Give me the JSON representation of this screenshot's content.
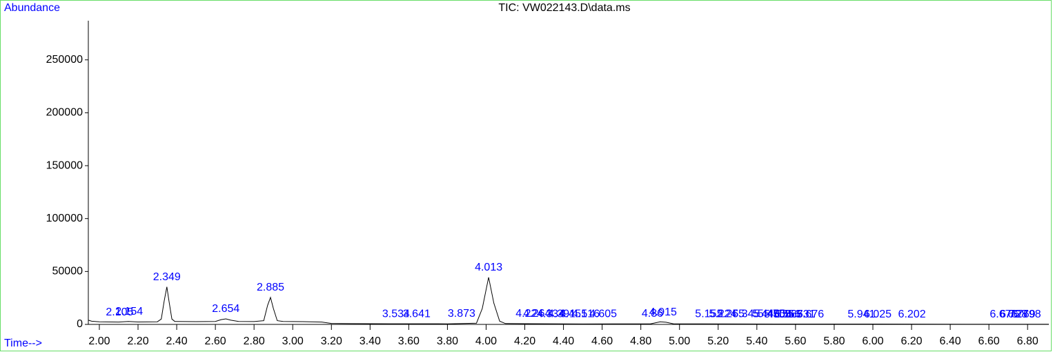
{
  "chart_data": {
    "type": "line",
    "title": "TIC: VW022143.D\\data.ms",
    "ylabel": "Abundance",
    "xlabel": "Time-->",
    "color": "#000000",
    "label_color": "#0000ff",
    "x": [
      1.943,
      1.96,
      2.0,
      2.1,
      2.15,
      2.2,
      2.3,
      2.32,
      2.335,
      2.349,
      2.36,
      2.375,
      2.39,
      2.5,
      2.6,
      2.63,
      2.654,
      2.68,
      2.72,
      2.8,
      2.85,
      2.87,
      2.885,
      2.9,
      2.92,
      2.95,
      3.05,
      3.15,
      3.2,
      3.3,
      3.5,
      3.8,
      3.95,
      3.98,
      4.013,
      4.04,
      4.07,
      4.1,
      4.5,
      4.85,
      4.9,
      4.93,
      4.97,
      5.5,
      6.0,
      6.5,
      6.91
    ],
    "values": [
      4000,
      3000,
      2500,
      2200,
      2800,
      2300,
      2500,
      5000,
      22000,
      35500,
      22000,
      5000,
      2800,
      2600,
      2800,
      4500,
      5200,
      4000,
      2800,
      2700,
      3500,
      18000,
      25500,
      15000,
      3500,
      2800,
      2600,
      2200,
      900,
      700,
      600,
      500,
      1200,
      15000,
      44500,
      20000,
      3000,
      800,
      400,
      500,
      2500,
      2000,
      500,
      300,
      300,
      200,
      200
    ],
    "peak_labels": [
      2.105,
      2.154,
      2.349,
      2.654,
      2.885,
      3.534,
      3.641,
      3.873,
      4.013,
      4.224,
      4.264,
      4.334,
      4.391,
      4.451,
      4.516,
      4.605,
      4.86,
      4.915,
      5.152,
      5.224,
      5.265,
      5.345,
      5.448,
      5.475,
      5.508,
      5.556,
      5.567,
      5.631,
      5.676,
      5.941,
      6.025,
      6.202,
      6.676,
      6.728,
      6.769,
      6.798
    ],
    "xlim": [
      1.943,
      6.91
    ],
    "ylim": [
      0,
      287000
    ],
    "xticks": [
      {
        "value": 2.0,
        "label": "2.00"
      },
      {
        "value": 2.2,
        "label": "2.20"
      },
      {
        "value": 2.4,
        "label": "2.40"
      },
      {
        "value": 2.6,
        "label": "2.60"
      },
      {
        "value": 2.8,
        "label": "2.80"
      },
      {
        "value": 3.0,
        "label": "3.00"
      },
      {
        "value": 3.2,
        "label": "3.20"
      },
      {
        "value": 3.4,
        "label": "3.40"
      },
      {
        "value": 3.6,
        "label": "3.60"
      },
      {
        "value": 3.8,
        "label": "3.80"
      },
      {
        "value": 4.0,
        "label": "4.00"
      },
      {
        "value": 4.2,
        "label": "4.20"
      },
      {
        "value": 4.4,
        "label": "4.40"
      },
      {
        "value": 4.6,
        "label": "4.60"
      },
      {
        "value": 4.8,
        "label": "4.80"
      },
      {
        "value": 5.0,
        "label": "5.00"
      },
      {
        "value": 5.2,
        "label": "5.20"
      },
      {
        "value": 5.4,
        "label": "5.40"
      },
      {
        "value": 5.6,
        "label": "5.60"
      },
      {
        "value": 5.8,
        "label": "5.80"
      },
      {
        "value": 6.0,
        "label": "6.00"
      },
      {
        "value": 6.2,
        "label": "6.20"
      },
      {
        "value": 6.4,
        "label": "6.40"
      },
      {
        "value": 6.6,
        "label": "6.60"
      },
      {
        "value": 6.8,
        "label": "6.80"
      }
    ],
    "yticks": [
      0,
      50000,
      100000,
      150000,
      200000,
      250000
    ]
  }
}
